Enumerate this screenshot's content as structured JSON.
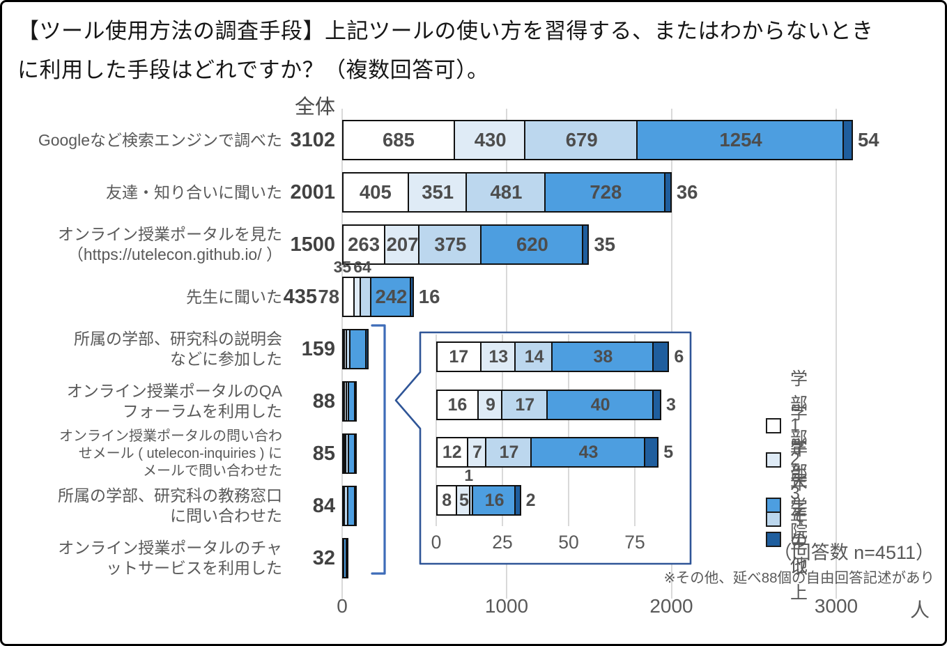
{
  "title": "【ツール使用方法の調査手段】上記ツールの使い方を習得する、またはわからないとき\nに利用した手段はどれですか？（複数回答可）。",
  "column_header": "全体",
  "unit_label": "人",
  "response_note": "（回答数 n=4511）",
  "footnote": "※その他、延べ88個の自由回答記述があり",
  "legend": {
    "items": [
      {
        "label": "学部1年生",
        "color": "#FFFFFF"
      },
      {
        "label": "学部2年生",
        "color": "#DFEBF6"
      },
      {
        "label": "学部3年生以上",
        "color": "#BCD7EE"
      },
      {
        "label": "大学院",
        "color": "#4D9EE0"
      },
      {
        "label": "その他",
        "color": "#1F5E9E"
      }
    ]
  },
  "colors": {
    "segment_border": "#101010",
    "gridline": "#D9D9D9",
    "bracket": "#3E6CB8",
    "inset_border": "#2F5597",
    "number_text": "#4D4D4D",
    "axis_text": "#595959"
  },
  "chart_data": [
    {
      "id": "main",
      "type": "bar",
      "orientation": "horizontal",
      "stacked": true,
      "series_names": [
        "学部1年生",
        "学部2年生",
        "学部3年生以上",
        "大学院",
        "その他"
      ],
      "x_ticks": [
        0,
        1000,
        2000,
        3000
      ],
      "xlim": [
        0,
        3500
      ],
      "xlabel": "人",
      "grid": true,
      "rows": [
        {
          "category": "Googleなど検索エンジンで調べた",
          "total": 3102,
          "values": [
            685,
            430,
            679,
            1254,
            54
          ],
          "label_pos": [
            "in",
            "in",
            "in",
            "in",
            "right"
          ]
        },
        {
          "category": "友達・知り合いに聞いた",
          "total": 2001,
          "values": [
            405,
            351,
            481,
            728,
            36
          ],
          "label_pos": [
            "in",
            "in",
            "in",
            "in",
            "right"
          ]
        },
        {
          "category": "オンライン授業ポータルを見た\n（https://utelecon.github.io/ ）",
          "total": 1500,
          "values": [
            263,
            207,
            375,
            620,
            35
          ],
          "label_pos": [
            "in",
            "in",
            "in",
            "in",
            "right"
          ]
        },
        {
          "category": "先生に聞いた",
          "total": 435,
          "values": [
            78,
            35,
            64,
            242,
            16
          ],
          "label_pos": [
            "left",
            "above",
            "above",
            "in",
            "right"
          ]
        },
        {
          "category": "所属の学部、研究科の説明会\nなどに参加した",
          "total": 159,
          "values": [
            17,
            14,
            20,
            96,
            12
          ],
          "label_pos": [
            "none",
            "none",
            "none",
            "none",
            "none"
          ],
          "segments_estimated": true
        },
        {
          "category": "オンライン授業ポータルのQA\nフォーラムを利用した",
          "total": 88,
          "values": [
            17,
            13,
            14,
            38,
            6
          ],
          "label_pos": [
            "none",
            "none",
            "none",
            "none",
            "none"
          ]
        },
        {
          "category": "オンライン授業ポータルの問い合わ\nせメール ( utelecon-inquiries ) に\nメールで問い合わせた",
          "total": 85,
          "values": [
            16,
            9,
            17,
            40,
            3
          ],
          "label_pos": [
            "none",
            "none",
            "none",
            "none",
            "none"
          ]
        },
        {
          "category": "所属の学部、研究科の教務窓口\nに問い合わせた",
          "total": 84,
          "values": [
            12,
            7,
            17,
            43,
            5
          ],
          "label_pos": [
            "none",
            "none",
            "none",
            "none",
            "none"
          ]
        },
        {
          "category": "オンライン授業ポータルのチャ\nットサービスを利用した",
          "total": 32,
          "values": [
            8,
            5,
            1,
            16,
            2
          ],
          "label_pos": [
            "none",
            "none",
            "none",
            "none",
            "none"
          ]
        }
      ]
    },
    {
      "id": "inset",
      "type": "bar",
      "orientation": "horizontal",
      "stacked": true,
      "series_names": [
        "学部1年生",
        "学部2年生",
        "学部3年生以上",
        "大学院",
        "その他"
      ],
      "x_ticks": [
        0,
        25,
        50,
        75
      ],
      "xlim": [
        0,
        96
      ],
      "grid": true,
      "rows": [
        {
          "category": "オンライン授業ポータルのQAフォーラムを利用した",
          "total": 88,
          "values": [
            17,
            13,
            14,
            38,
            6
          ],
          "label_pos": [
            "in",
            "in",
            "in",
            "in",
            "right"
          ]
        },
        {
          "category": "オンライン授業ポータルの問い合わせメール ( utelecon-inquiries ) にメールで問い合わせた",
          "total": 85,
          "values": [
            16,
            9,
            17,
            40,
            3
          ],
          "label_pos": [
            "in",
            "in",
            "in",
            "in",
            "right"
          ]
        },
        {
          "category": "所属の学部、研究科の教務窓口に問い合わせた",
          "total": 84,
          "values": [
            12,
            7,
            17,
            43,
            5
          ],
          "label_pos": [
            "in",
            "in",
            "in",
            "in",
            "right"
          ]
        },
        {
          "category": "オンライン授業ポータルのチャットサービスを利用した",
          "total": 32,
          "values": [
            8,
            5,
            1,
            16,
            2
          ],
          "label_pos": [
            "in",
            "in",
            "above",
            "in",
            "right"
          ]
        }
      ]
    }
  ]
}
